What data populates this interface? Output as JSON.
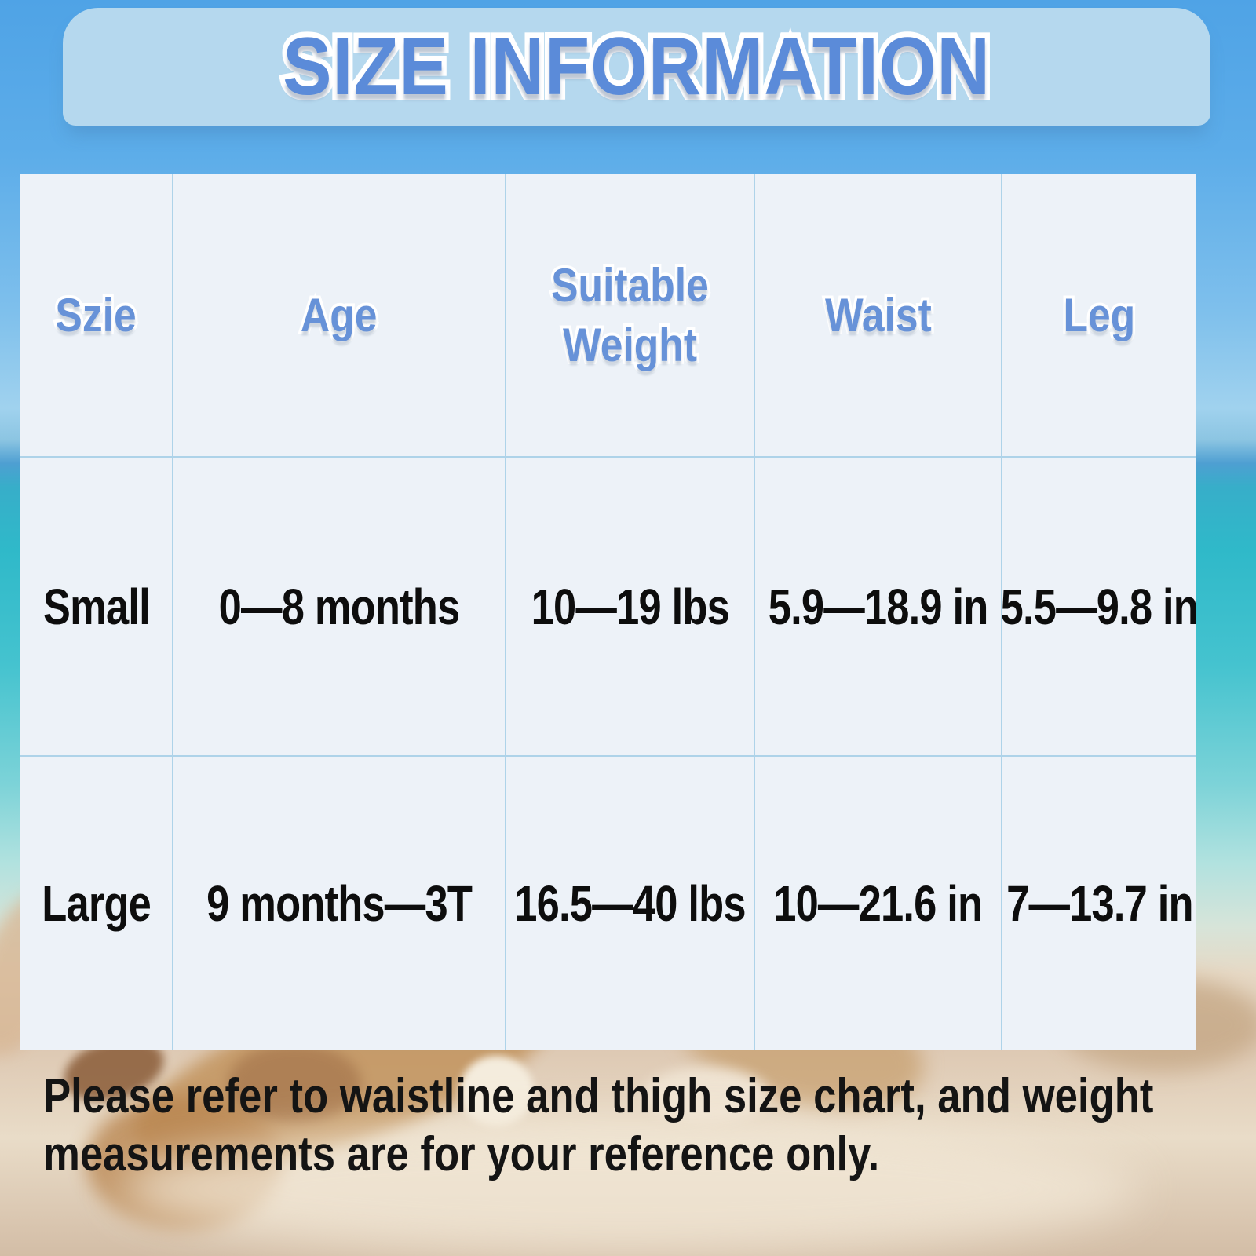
{
  "title": "SIZE INFORMATION",
  "chart_data": {
    "type": "table",
    "title": "SIZE INFORMATION",
    "columns": [
      "Szie",
      "Age",
      "Suitable Weight",
      "Waist",
      "Leg"
    ],
    "rows": [
      [
        "Small",
        "0—8 months",
        "10—19 lbs",
        "5.9—18.9 in",
        "5.5—9.8 in"
      ],
      [
        "Large",
        "9 months—3T",
        "16.5—40 lbs",
        "10—21.6 in",
        "7—13.7 in"
      ]
    ]
  },
  "footer": {
    "note_line1": "Please refer to waistline and thigh size chart, and weight",
    "note_line2": "measurements are for your reference only."
  },
  "colors": {
    "sky_blue": "#57a7e7",
    "ocean_teal": "#35bac9",
    "sand": "#dcc6b0",
    "banner_bg": "#b5d8ee",
    "title_blue": "#5b8bd9",
    "header_blue": "#6792d8",
    "table_bg": "#edf2f8",
    "gridline_blue": "#aed3e9",
    "text_black": "#0d0d0d"
  }
}
